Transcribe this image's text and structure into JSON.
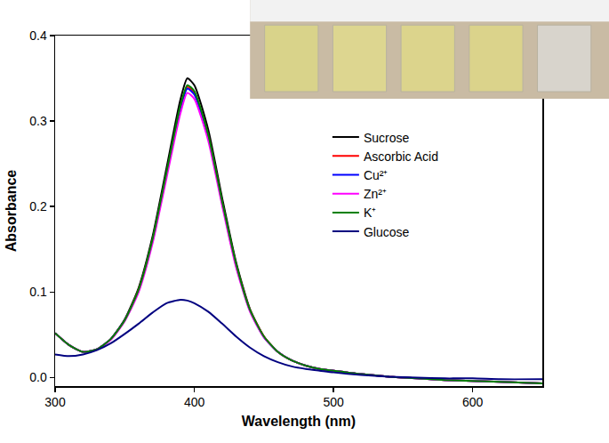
{
  "chart_data": {
    "type": "line",
    "x_label": "Wavelength (nm)",
    "y_label": "Absorbance",
    "x": [
      300,
      310,
      320,
      330,
      340,
      350,
      360,
      370,
      380,
      390,
      395,
      400,
      410,
      420,
      430,
      440,
      450,
      460,
      470,
      480,
      490,
      500,
      520,
      540,
      560,
      580,
      600,
      620,
      650
    ],
    "series": [
      {
        "name": "Sucrose",
        "color": "#000000",
        "values": [
          0.052,
          0.038,
          0.03,
          0.033,
          0.045,
          0.068,
          0.105,
          0.165,
          0.245,
          0.325,
          0.35,
          0.342,
          0.29,
          0.21,
          0.135,
          0.08,
          0.048,
          0.03,
          0.02,
          0.014,
          0.01,
          0.008,
          0.004,
          0.001,
          -0.001,
          -0.003,
          -0.004,
          -0.005,
          -0.007
        ]
      },
      {
        "name": "Ascorbic Acid",
        "color": "#ff0000",
        "values": [
          0.052,
          0.038,
          0.03,
          0.033,
          0.045,
          0.067,
          0.103,
          0.161,
          0.238,
          0.316,
          0.34,
          0.333,
          0.283,
          0.205,
          0.132,
          0.079,
          0.048,
          0.03,
          0.02,
          0.014,
          0.01,
          0.008,
          0.004,
          0.001,
          -0.001,
          -0.003,
          -0.004,
          -0.005,
          -0.007
        ]
      },
      {
        "name": "Cu²⁺",
        "color": "#0000ff",
        "values": [
          0.052,
          0.038,
          0.03,
          0.033,
          0.045,
          0.067,
          0.102,
          0.16,
          0.237,
          0.314,
          0.338,
          0.331,
          0.281,
          0.204,
          0.131,
          0.078,
          0.047,
          0.03,
          0.02,
          0.014,
          0.01,
          0.008,
          0.004,
          0.001,
          -0.001,
          -0.003,
          -0.004,
          -0.005,
          -0.007
        ]
      },
      {
        "name": "Zn²⁺",
        "color": "#ff00ff",
        "values": [
          0.052,
          0.038,
          0.03,
          0.033,
          0.044,
          0.066,
          0.1,
          0.157,
          0.233,
          0.309,
          0.333,
          0.326,
          0.277,
          0.201,
          0.129,
          0.077,
          0.047,
          0.03,
          0.02,
          0.014,
          0.01,
          0.008,
          0.004,
          0.001,
          -0.001,
          -0.003,
          -0.004,
          -0.005,
          -0.007
        ]
      },
      {
        "name": "K⁺",
        "color": "#008000",
        "values": [
          0.052,
          0.038,
          0.03,
          0.033,
          0.045,
          0.067,
          0.103,
          0.162,
          0.24,
          0.318,
          0.342,
          0.335,
          0.284,
          0.206,
          0.133,
          0.079,
          0.048,
          0.03,
          0.02,
          0.014,
          0.01,
          0.008,
          0.004,
          0.001,
          -0.001,
          -0.003,
          -0.004,
          -0.005,
          -0.007
        ]
      },
      {
        "name": "Glucose",
        "color": "#000080",
        "values": [
          0.027,
          0.025,
          0.027,
          0.032,
          0.04,
          0.051,
          0.063,
          0.076,
          0.087,
          0.091,
          0.09,
          0.087,
          0.077,
          0.063,
          0.048,
          0.035,
          0.025,
          0.018,
          0.013,
          0.01,
          0.008,
          0.006,
          0.003,
          0.001,
          0.0,
          -0.001,
          -0.001,
          -0.002,
          -0.002
        ]
      }
    ],
    "xlim": [
      300,
      650
    ],
    "ylim": [
      -0.01,
      0.4
    ],
    "xticks": [
      300,
      400,
      500,
      600
    ],
    "yticks": [
      {
        "value": 0,
        "label": "0.0"
      },
      0.1,
      0.2,
      0.3,
      0.4
    ],
    "grid": false,
    "legend": "upper right"
  }
}
